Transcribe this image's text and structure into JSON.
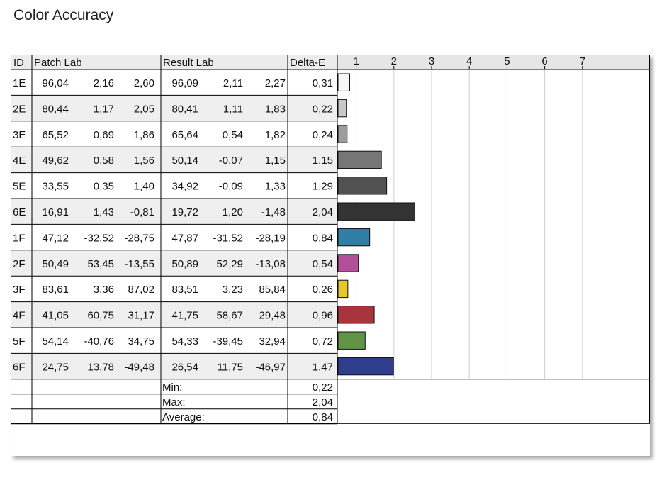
{
  "title": "Color Accuracy",
  "columns": {
    "id": "ID",
    "patch": "Patch Lab",
    "result": "Result Lab",
    "delta": "Delta-E"
  },
  "rows": [
    {
      "id": "1E",
      "patch": [
        "96,04",
        "2,16",
        "2,60"
      ],
      "result": [
        "96,09",
        "2,11",
        "2,27"
      ],
      "delta": "0,31",
      "color": "#f7f7f7"
    },
    {
      "id": "2E",
      "patch": [
        "80,44",
        "1,17",
        "2,05"
      ],
      "result": [
        "80,41",
        "1,11",
        "1,83"
      ],
      "delta": "0,22",
      "color": "#c8c8c8"
    },
    {
      "id": "3E",
      "patch": [
        "65,52",
        "0,69",
        "1,86"
      ],
      "result": [
        "65,64",
        "0,54",
        "1,82"
      ],
      "delta": "0,24",
      "color": "#9c9c9c"
    },
    {
      "id": "4E",
      "patch": [
        "49,62",
        "0,58",
        "1,56"
      ],
      "result": [
        "50,14",
        "-0,07",
        "1,15"
      ],
      "delta": "1,15",
      "color": "#777777"
    },
    {
      "id": "5E",
      "patch": [
        "33,55",
        "0,35",
        "1,40"
      ],
      "result": [
        "34,92",
        "-0,09",
        "1,33"
      ],
      "delta": "1,29",
      "color": "#515151"
    },
    {
      "id": "6E",
      "patch": [
        "16,91",
        "1,43",
        "-0,81"
      ],
      "result": [
        "19,72",
        "1,20",
        "-1,48"
      ],
      "delta": "2,04",
      "color": "#333333"
    },
    {
      "id": "1F",
      "patch": [
        "47,12",
        "-32,52",
        "-28,75"
      ],
      "result": [
        "47,87",
        "-31,52",
        "-28,19"
      ],
      "delta": "0,84",
      "color": "#2f7ea4"
    },
    {
      "id": "2F",
      "patch": [
        "50,49",
        "53,45",
        "-13,55"
      ],
      "result": [
        "50,89",
        "52,29",
        "-13,08"
      ],
      "delta": "0,54",
      "color": "#b2509a"
    },
    {
      "id": "3F",
      "patch": [
        "83,61",
        "3,36",
        "87,02"
      ],
      "result": [
        "83,51",
        "3,23",
        "85,84"
      ],
      "delta": "0,26",
      "color": "#e5c72a"
    },
    {
      "id": "4F",
      "patch": [
        "41,05",
        "60,75",
        "31,17"
      ],
      "result": [
        "41,75",
        "58,67",
        "29,48"
      ],
      "delta": "0,96",
      "color": "#a8353c"
    },
    {
      "id": "5F",
      "patch": [
        "54,14",
        "-40,76",
        "34,75"
      ],
      "result": [
        "54,33",
        "-39,45",
        "32,94"
      ],
      "delta": "0,72",
      "color": "#5f9545"
    },
    {
      "id": "6F",
      "patch": [
        "24,75",
        "13,78",
        "-49,48"
      ],
      "result": [
        "26,54",
        "11,75",
        "-46,97"
      ],
      "delta": "1,47",
      "color": "#2f3e8c"
    }
  ],
  "summary": [
    {
      "label": "Min:",
      "value": "0,22"
    },
    {
      "label": "Max:",
      "value": "2,04"
    },
    {
      "label": "Average:",
      "value": "0,84"
    }
  ],
  "chart_data": {
    "type": "bar",
    "orientation": "horizontal",
    "categories": [
      "1E",
      "2E",
      "3E",
      "4E",
      "5E",
      "6E",
      "1F",
      "2F",
      "3F",
      "4F",
      "5F",
      "6F"
    ],
    "values": [
      0.31,
      0.22,
      0.24,
      1.15,
      1.29,
      2.04,
      0.84,
      0.54,
      0.26,
      0.96,
      0.72,
      1.47
    ],
    "colors": [
      "#f7f7f7",
      "#c8c8c8",
      "#9c9c9c",
      "#777777",
      "#515151",
      "#333333",
      "#2f7ea4",
      "#b2509a",
      "#e5c72a",
      "#a8353c",
      "#5f9545",
      "#2f3e8c"
    ],
    "ticks": [
      "1",
      "2",
      "3",
      "4",
      "5",
      "6",
      "7"
    ],
    "xlim": [
      0,
      8
    ],
    "grid": true,
    "xlabel": "",
    "ylabel": ""
  }
}
